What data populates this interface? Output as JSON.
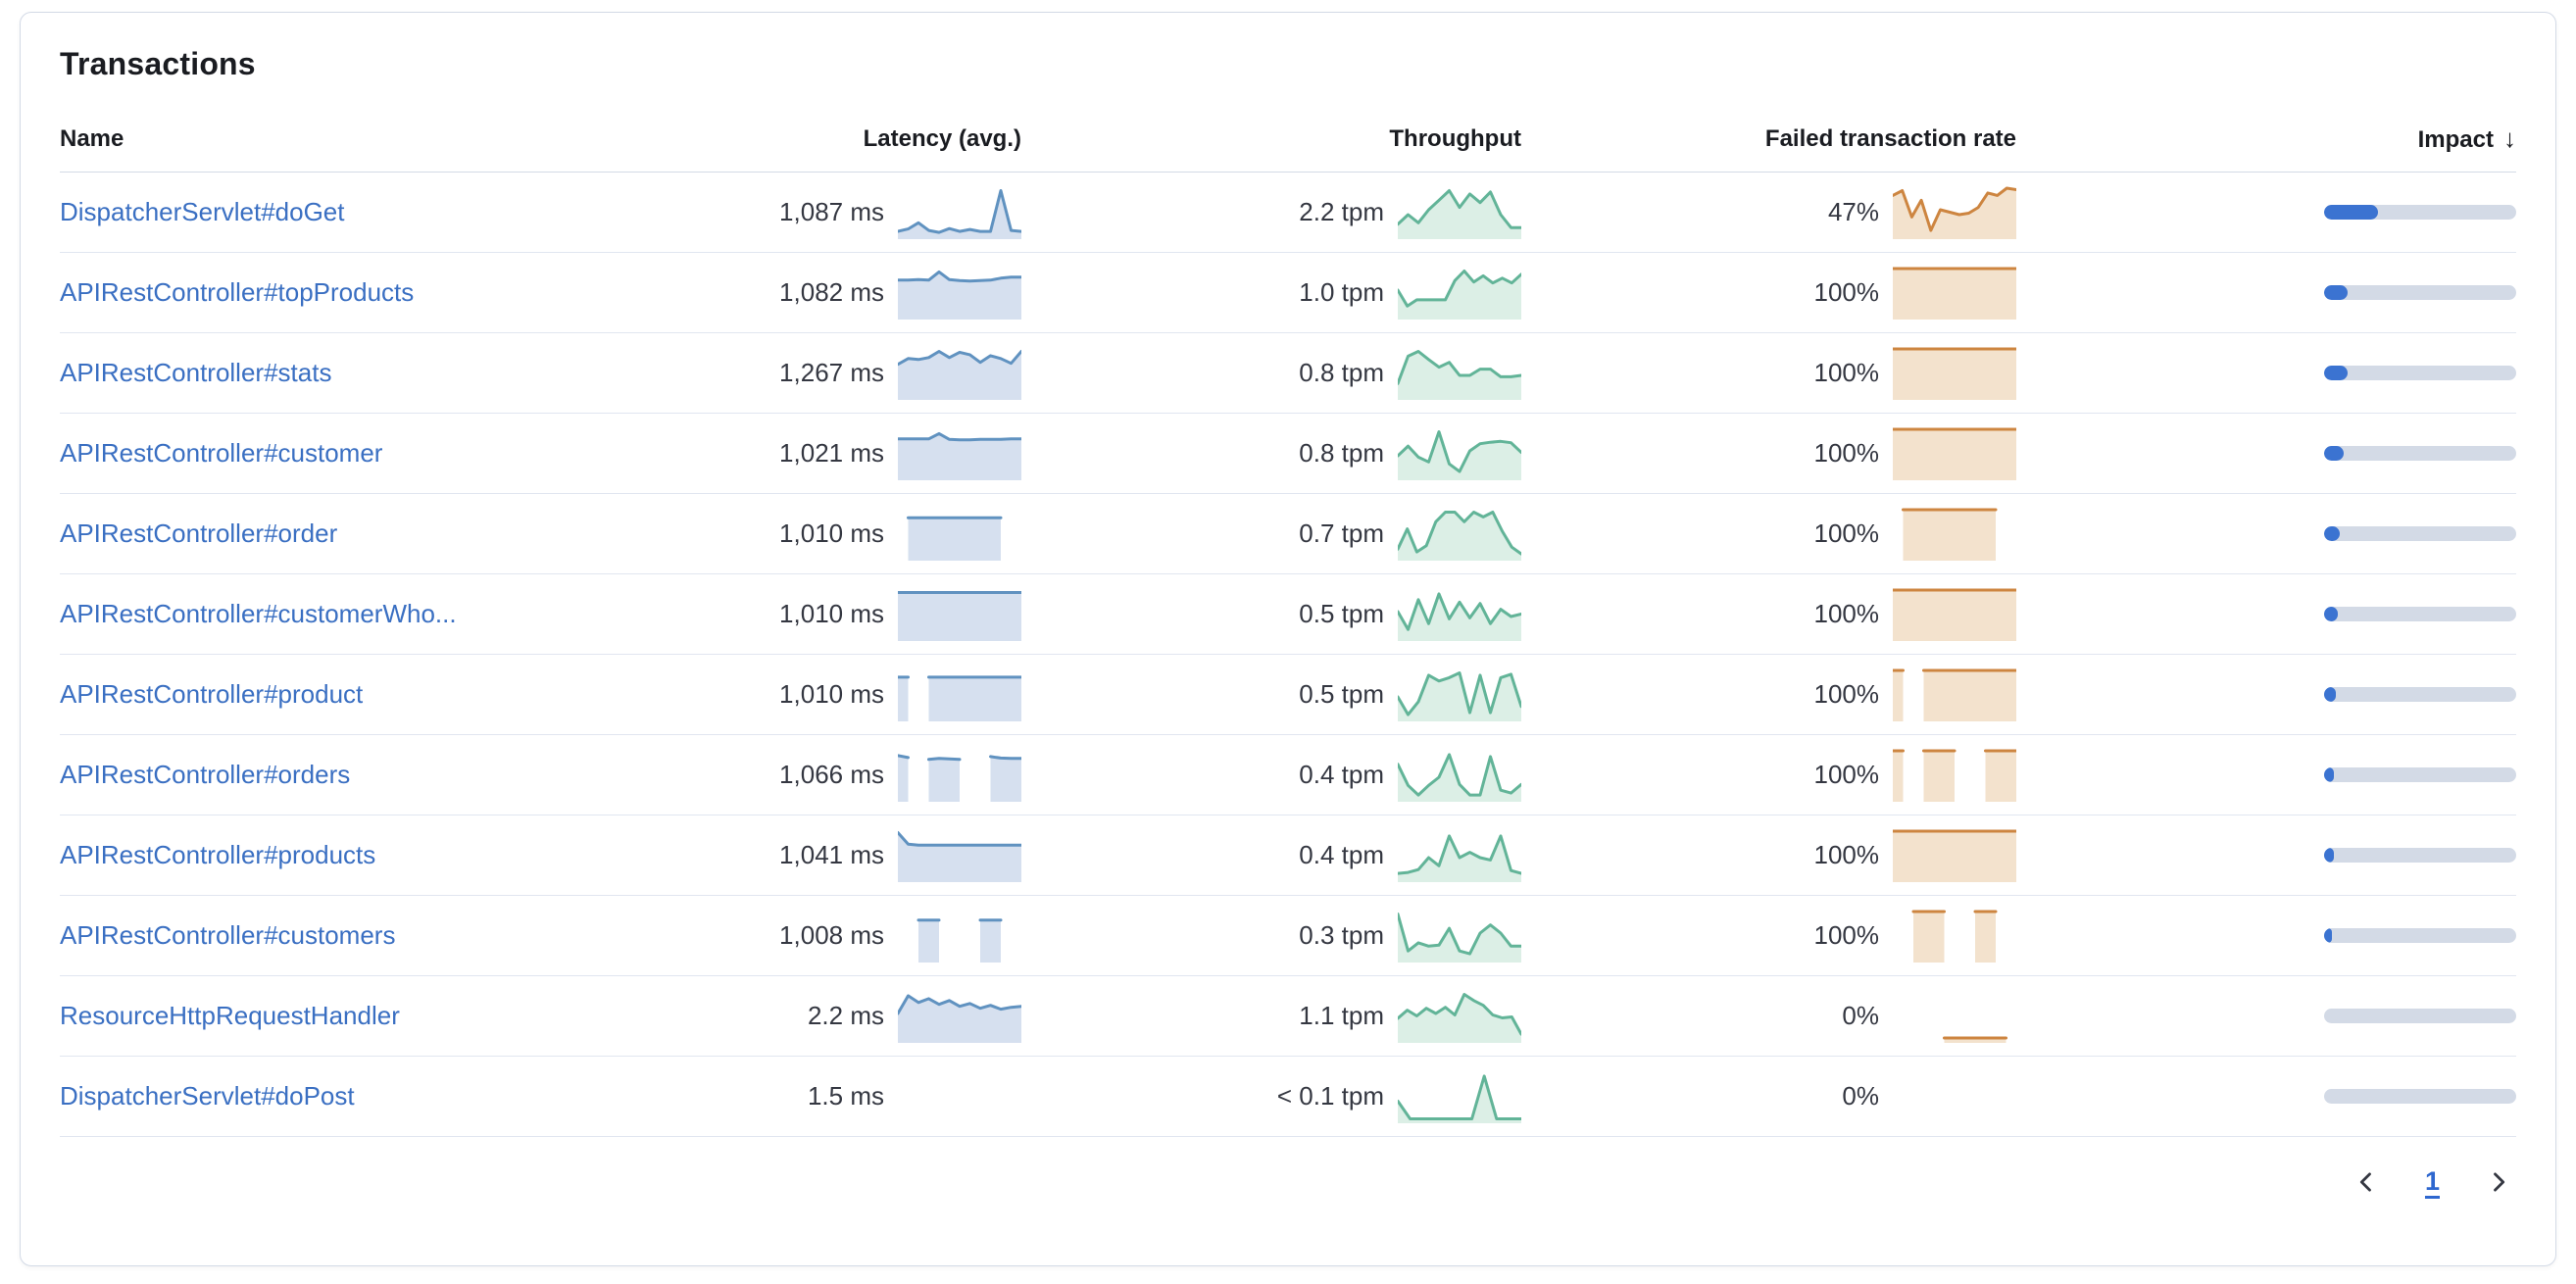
{
  "title": "Transactions",
  "columns": {
    "name": "Name",
    "latency": "Latency (avg.)",
    "throughput": "Throughput",
    "failed": "Failed transaction rate",
    "impact": "Impact",
    "impact_sort_indicator": "↓"
  },
  "pagination": {
    "page": "1"
  },
  "colors": {
    "link": "#3a6fc2",
    "latency_line": "#6092c0",
    "latency_fill": "#d6e0ef",
    "throughput_line": "#62b498",
    "throughput_fill": "#dcefe6",
    "failed_line": "#cd8540",
    "failed_fill": "#f3e2cd",
    "impact_fill": "#3b73d1",
    "impact_track": "#d3dae6"
  },
  "rows": [
    {
      "name": "DispatcherServlet#doGet",
      "latency": "1,087 ms",
      "throughput": "2.2 tpm",
      "failed": "47%",
      "impact_pct": 28,
      "latency_spark": [
        0.1,
        0.15,
        0.28,
        0.12,
        0.08,
        0.16,
        0.1,
        0.14,
        0.1,
        0.1,
        0.95,
        0.12,
        0.1
      ],
      "throughput_spark": [
        0.25,
        0.45,
        0.28,
        0.55,
        0.75,
        0.95,
        0.6,
        0.88,
        0.7,
        0.92,
        0.45,
        0.18,
        0.18
      ],
      "failed_spark": [
        0.85,
        0.95,
        0.4,
        0.75,
        0.12,
        0.55,
        0.5,
        0.45,
        0.48,
        0.6,
        0.9,
        0.85,
        1.0,
        0.97
      ]
    },
    {
      "name": "APIRestController#topProducts",
      "latency": "1,082 ms",
      "throughput": "1.0 tpm",
      "failed": "100%",
      "impact_pct": 12,
      "latency_spark": [
        0.76,
        0.76,
        0.77,
        0.76,
        0.93,
        0.77,
        0.75,
        0.74,
        0.75,
        0.76,
        0.8,
        0.82,
        0.82
      ],
      "throughput_spark": [
        0.55,
        0.22,
        0.35,
        0.35,
        0.35,
        0.35,
        0.75,
        0.95,
        0.72,
        0.85,
        0.7,
        0.8,
        0.7,
        0.88
      ],
      "failed_spark": [
        1,
        1,
        1,
        1,
        1,
        1,
        1,
        1,
        1,
        1,
        1,
        1,
        1
      ]
    },
    {
      "name": "APIRestController#stats",
      "latency": "1,267 ms",
      "throughput": "0.8 tpm",
      "failed": "100%",
      "impact_pct": 12,
      "latency_spark": [
        0.68,
        0.8,
        0.78,
        0.82,
        0.95,
        0.82,
        0.93,
        0.88,
        0.72,
        0.86,
        0.8,
        0.7,
        0.95
      ],
      "throughput_spark": [
        0.28,
        0.85,
        0.95,
        0.78,
        0.62,
        0.72,
        0.45,
        0.45,
        0.58,
        0.58,
        0.42,
        0.42,
        0.45
      ],
      "failed_spark": [
        1,
        1,
        1,
        1,
        1,
        1,
        1,
        1,
        1,
        1,
        1,
        1,
        1
      ]
    },
    {
      "name": "APIRestController#customer",
      "latency": "1,021 ms",
      "throughput": "0.8 tpm",
      "failed": "100%",
      "impact_pct": 10,
      "latency_spark": [
        0.8,
        0.8,
        0.8,
        0.8,
        0.91,
        0.79,
        0.78,
        0.78,
        0.79,
        0.79,
        0.79,
        0.8,
        0.8
      ],
      "throughput_spark": [
        0.45,
        0.65,
        0.42,
        0.32,
        0.95,
        0.28,
        0.12,
        0.55,
        0.7,
        0.73,
        0.75,
        0.72,
        0.52
      ],
      "failed_spark": [
        1,
        1,
        1,
        1,
        1,
        1,
        1,
        1,
        1,
        1,
        1,
        1,
        1
      ]
    },
    {
      "name": "APIRestController#order",
      "latency": "1,010 ms",
      "throughput": "0.7 tpm",
      "failed": "100%",
      "impact_pct": 8,
      "latency_spark": [
        null,
        0.83,
        0.83,
        0.83,
        0.83,
        0.83,
        0.83,
        0.83,
        0.83,
        0.83,
        0.83,
        null,
        null
      ],
      "throughput_spark": [
        0.18,
        0.6,
        0.12,
        0.25,
        0.75,
        0.95,
        0.95,
        0.75,
        0.95,
        0.85,
        0.95,
        0.55,
        0.22,
        0.08
      ],
      "failed_spark": [
        null,
        1,
        1,
        1,
        1,
        1,
        1,
        1,
        1,
        1,
        1,
        null,
        null
      ]
    },
    {
      "name": "APIRestController#customerWho...",
      "latency": "1,010 ms",
      "throughput": "0.5 tpm",
      "failed": "100%",
      "impact_pct": 7,
      "latency_spark": [
        0.95,
        0.95,
        0.95,
        0.95,
        0.95,
        0.95,
        0.95,
        0.95,
        0.95,
        0.95,
        0.95,
        0.95,
        0.95
      ],
      "throughput_spark": [
        0.55,
        0.18,
        0.8,
        0.3,
        0.92,
        0.4,
        0.75,
        0.42,
        0.72,
        0.3,
        0.6,
        0.45,
        0.5
      ],
      "failed_spark": [
        1,
        1,
        1,
        1,
        1,
        1,
        1,
        1,
        1,
        1,
        1,
        1,
        1
      ]
    },
    {
      "name": "APIRestController#product",
      "latency": "1,010 ms",
      "throughput": "0.5 tpm",
      "failed": "100%",
      "impact_pct": 6,
      "latency_spark": [
        0.86,
        0.86,
        null,
        0.86,
        0.86,
        0.86,
        0.86,
        0.86,
        0.86,
        0.86,
        0.86,
        0.86,
        0.86
      ],
      "throughput_spark": [
        0.45,
        0.08,
        0.35,
        0.9,
        0.78,
        0.85,
        0.95,
        0.12,
        0.9,
        0.12,
        0.85,
        0.92,
        0.25
      ],
      "failed_spark": [
        1,
        1,
        null,
        1,
        1,
        1,
        1,
        1,
        1,
        1,
        1,
        1,
        1
      ]
    },
    {
      "name": "APIRestController#orders",
      "latency": "1,066 ms",
      "throughput": "0.4 tpm",
      "failed": "100%",
      "impact_pct": 5,
      "latency_spark": [
        0.9,
        0.86,
        null,
        0.82,
        0.84,
        0.83,
        0.82,
        null,
        null,
        0.88,
        0.85,
        0.84,
        0.84
      ],
      "throughput_spark": [
        0.72,
        0.28,
        0.08,
        0.28,
        0.45,
        0.92,
        0.3,
        0.08,
        0.08,
        0.88,
        0.18,
        0.12,
        0.3
      ],
      "failed_spark": [
        1,
        1,
        null,
        1,
        1,
        1,
        1,
        null,
        null,
        1,
        1,
        1,
        1
      ]
    },
    {
      "name": "APIRestController#products",
      "latency": "1,041 ms",
      "throughput": "0.4 tpm",
      "failed": "100%",
      "impact_pct": 5,
      "latency_spark": [
        0.97,
        0.73,
        0.71,
        0.71,
        0.71,
        0.71,
        0.71,
        0.71,
        0.71,
        0.71,
        0.71,
        0.71,
        0.71
      ],
      "throughput_spark": [
        0.12,
        0.14,
        0.2,
        0.45,
        0.28,
        0.9,
        0.45,
        0.56,
        0.45,
        0.4,
        0.9,
        0.18,
        0.12
      ],
      "failed_spark": [
        1,
        1,
        1,
        1,
        1,
        1,
        1,
        1,
        1,
        1,
        1,
        1,
        1
      ]
    },
    {
      "name": "APIRestController#customers",
      "latency": "1,008 ms",
      "throughput": "0.3 tpm",
      "failed": "100%",
      "impact_pct": 4,
      "latency_spark": [
        null,
        null,
        0.82,
        0.82,
        0.82,
        null,
        null,
        null,
        0.82,
        0.82,
        0.82,
        null,
        null
      ],
      "throughput_spark": [
        0.95,
        0.18,
        0.35,
        0.28,
        0.3,
        0.65,
        0.18,
        0.12,
        0.55,
        0.72,
        0.55,
        0.28,
        0.28
      ],
      "failed_spark": [
        null,
        null,
        1,
        1,
        1,
        1,
        null,
        null,
        1,
        1,
        1,
        null,
        null
      ]
    },
    {
      "name": "ResourceHttpRequestHandler",
      "latency": "2.2 ms",
      "throughput": "1.1 tpm",
      "failed": "0%",
      "impact_pct": 0,
      "latency_spark": [
        0.55,
        0.92,
        0.78,
        0.86,
        0.74,
        0.82,
        0.7,
        0.76,
        0.66,
        0.72,
        0.64,
        0.68,
        0.7
      ],
      "throughput_spark": [
        0.45,
        0.62,
        0.5,
        0.66,
        0.55,
        0.68,
        0.52,
        0.95,
        0.82,
        0.72,
        0.52,
        0.46,
        0.48,
        0.12
      ],
      "failed_spark": [
        null,
        null,
        null,
        null,
        null,
        0.04,
        0.04,
        0.04,
        0.04,
        0.04,
        0.04,
        0.04,
        null
      ]
    },
    {
      "name": "DispatcherServlet#doPost",
      "latency": "1.5 ms",
      "throughput": "< 0.1 tpm",
      "failed": "0%",
      "impact_pct": 0,
      "latency_spark": null,
      "throughput_spark": [
        0.4,
        0.03,
        0.03,
        0.03,
        0.03,
        0.03,
        0.03,
        0.92,
        0.03,
        0.03,
        0.03
      ],
      "failed_spark": null
    }
  ]
}
